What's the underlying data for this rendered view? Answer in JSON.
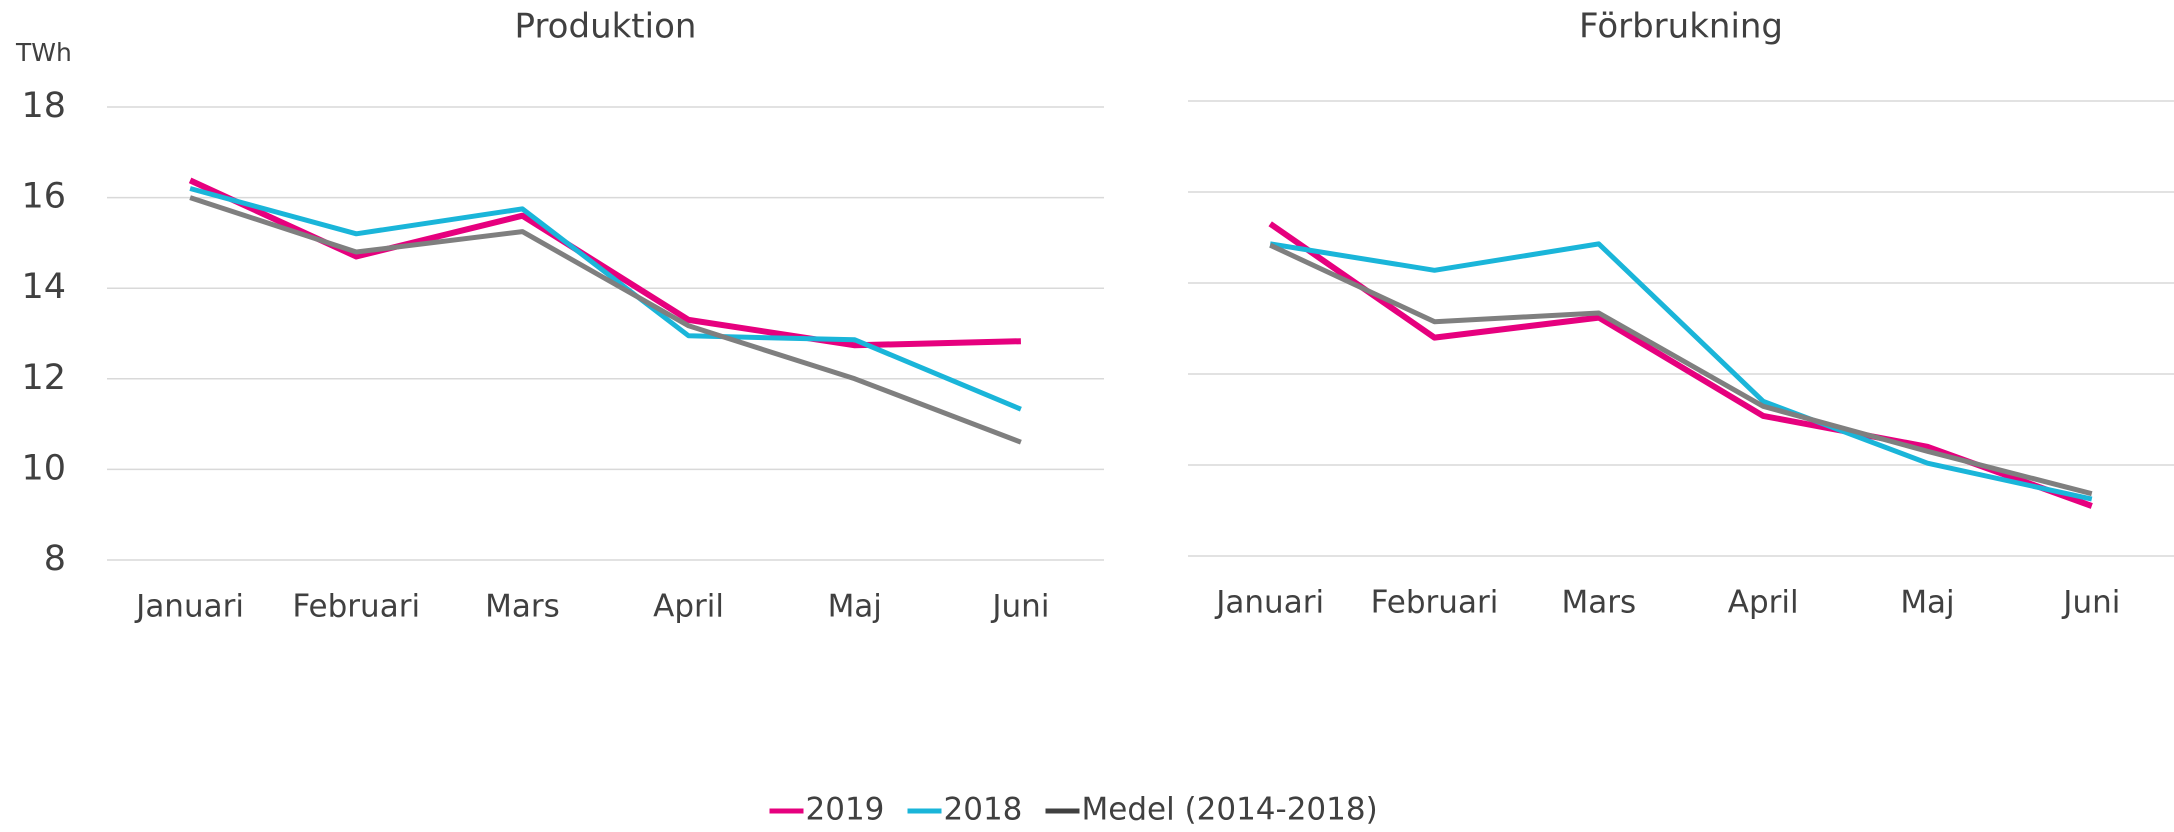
{
  "chart_data": [
    {
      "type": "line",
      "title": "Produktion",
      "y_label": "TWh",
      "categories": [
        "Januari",
        "Februari",
        "Mars",
        "April",
        "Maj",
        "Juni"
      ],
      "series": [
        {
          "name": "2019",
          "color": "#e6007e",
          "values": [
            16.38,
            14.7,
            15.6,
            13.3,
            12.74,
            12.83
          ]
        },
        {
          "name": "2018",
          "color": "#1ab5d9",
          "values": [
            16.2,
            15.2,
            15.75,
            12.95,
            12.86,
            11.33
          ]
        },
        {
          "name": "Medel (2014-2018)",
          "color": "#7f7f7f",
          "values": [
            16.0,
            14.8,
            15.25,
            13.17,
            12.0,
            10.6
          ]
        }
      ],
      "ylim": [
        8,
        18
      ],
      "yticks": [
        8,
        10,
        12,
        14,
        16,
        18
      ],
      "grid": true,
      "tick_labels": true,
      "legend": "bottom"
    },
    {
      "type": "line",
      "title": "Förbrukning",
      "categories": [
        "Januari",
        "Februari",
        "Mars",
        "April",
        "Maj",
        "Juni"
      ],
      "series": [
        {
          "name": "2019",
          "color": "#e6007e",
          "values": [
            15.3,
            12.8,
            13.24,
            11.08,
            10.4,
            9.1
          ]
        },
        {
          "name": "2018",
          "color": "#1ab5d9",
          "values": [
            14.86,
            14.28,
            14.86,
            11.4,
            10.04,
            9.25
          ]
        },
        {
          "name": "Medel (2014-2018)",
          "color": "#7f7f7f",
          "values": [
            14.83,
            13.15,
            13.34,
            11.29,
            10.3,
            9.37
          ]
        }
      ],
      "ylim": [
        8,
        18
      ],
      "yticks": [
        8,
        10,
        12,
        14,
        16,
        18
      ],
      "grid": true,
      "tick_labels": false
    }
  ]
}
